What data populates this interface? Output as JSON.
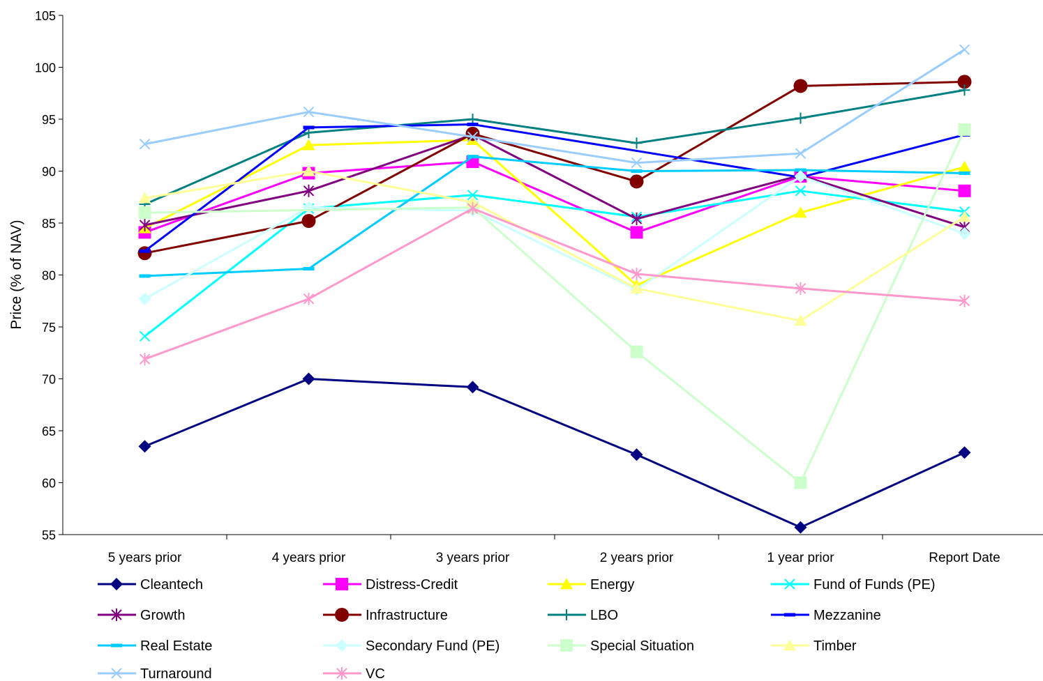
{
  "chart_data": {
    "type": "line",
    "ylabel": "Price (% of NAV)",
    "ylim": [
      55,
      105
    ],
    "yticks": [
      55,
      60,
      65,
      70,
      75,
      80,
      85,
      90,
      95,
      100,
      105
    ],
    "categories": [
      "5 years prior",
      "4 years prior",
      "3 years prior",
      "2 years prior",
      "1 year prior",
      "Report Date"
    ],
    "legend_position": "bottom",
    "series": [
      {
        "name": "Cleantech",
        "color": "#000080",
        "marker": "diamond",
        "values": [
          63.5,
          70.0,
          69.2,
          62.7,
          55.7,
          62.9
        ]
      },
      {
        "name": "Distress-Credit",
        "color": "#FF00FF",
        "marker": "square",
        "values": [
          84.1,
          89.8,
          90.9,
          84.1,
          89.5,
          88.1
        ]
      },
      {
        "name": "Energy",
        "color": "#FFFF00",
        "marker": "triangle",
        "values": [
          84.5,
          92.5,
          93.0,
          79.0,
          86.0,
          90.4
        ]
      },
      {
        "name": "Fund of Funds (PE)",
        "color": "#00FFFF",
        "marker": "x",
        "values": [
          74.1,
          86.4,
          87.7,
          85.6,
          88.1,
          86.1
        ]
      },
      {
        "name": "Growth",
        "color": "#800080",
        "marker": "star",
        "values": [
          84.8,
          88.1,
          93.5,
          85.4,
          89.6,
          84.6
        ]
      },
      {
        "name": "Infrastructure",
        "color": "#800000",
        "marker": "circle",
        "values": [
          82.1,
          85.2,
          93.6,
          89.0,
          98.2,
          98.6
        ]
      },
      {
        "name": "LBO",
        "color": "#008080",
        "marker": "plus",
        "values": [
          86.8,
          93.7,
          95.0,
          92.7,
          95.1,
          97.8
        ]
      },
      {
        "name": "Mezzanine",
        "color": "#0000FF",
        "marker": "dash",
        "values": [
          82.3,
          94.2,
          94.5,
          null,
          89.4,
          93.5
        ]
      },
      {
        "name": "Real Estate",
        "color": "#00CCFF",
        "marker": "dash",
        "values": [
          79.9,
          80.6,
          91.4,
          90.0,
          90.1,
          89.8
        ]
      },
      {
        "name": "Secondary Fund (PE)",
        "color": "#CCFFFF",
        "marker": "diamond",
        "values": [
          77.7,
          86.5,
          86.2,
          78.6,
          89.5,
          84.0
        ]
      },
      {
        "name": "Special Situation",
        "color": "#CCFFCC",
        "marker": "square",
        "values": [
          86.0,
          null,
          86.5,
          72.6,
          60.0,
          94.0
        ]
      },
      {
        "name": "Timber",
        "color": "#FFFF99",
        "marker": "triangle",
        "values": [
          87.4,
          90.0,
          87.0,
          78.7,
          75.6,
          85.6
        ]
      },
      {
        "name": "Turnaround",
        "color": "#99CCFF",
        "marker": "x",
        "values": [
          92.6,
          95.7,
          93.3,
          90.8,
          91.7,
          101.7
        ]
      },
      {
        "name": "VC",
        "color": "#FF99CC",
        "marker": "star",
        "values": [
          71.9,
          77.7,
          86.4,
          80.1,
          78.7,
          77.5
        ]
      }
    ]
  }
}
